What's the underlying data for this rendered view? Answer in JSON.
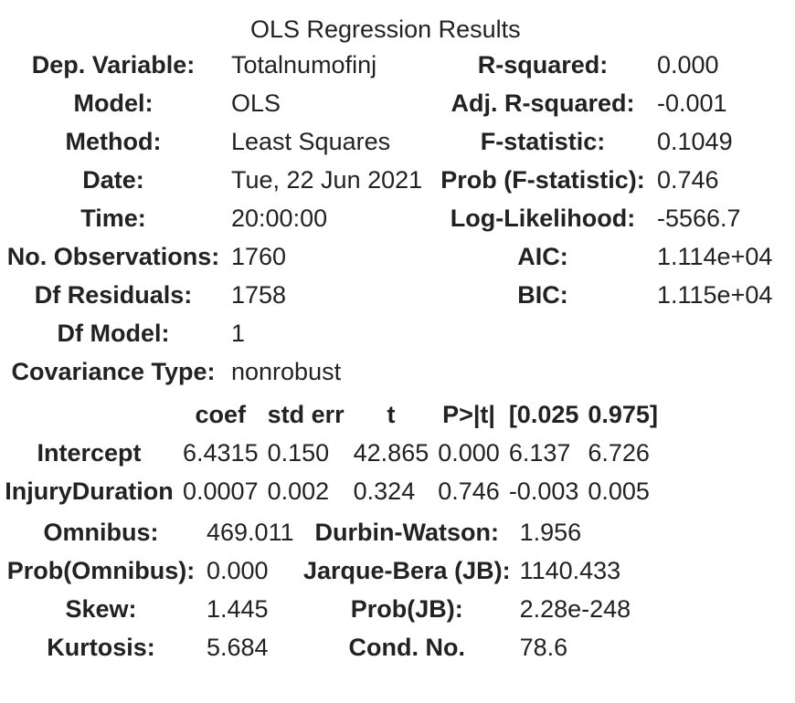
{
  "caption": "OLS Regression Results",
  "summary": {
    "rows": [
      {
        "l1": "Dep. Variable:",
        "v1": "Totalnumofinj",
        "l2": "R-squared:",
        "v2": "0.000"
      },
      {
        "l1": "Model:",
        "v1": "OLS",
        "l2": "Adj. R-squared:",
        "v2": "-0.001"
      },
      {
        "l1": "Method:",
        "v1": "Least Squares",
        "l2": "F-statistic:",
        "v2": "0.1049"
      },
      {
        "l1": "Date:",
        "v1": "Tue, 22 Jun 2021",
        "l2": "Prob (F-statistic):",
        "v2": "0.746"
      },
      {
        "l1": "Time:",
        "v1": "20:00:00",
        "l2": "Log-Likelihood:",
        "v2": "-5566.7"
      },
      {
        "l1": "No. Observations:",
        "v1": "1760",
        "l2": "AIC:",
        "v2": "1.114e+04"
      },
      {
        "l1": "Df Residuals:",
        "v1": "1758",
        "l2": "BIC:",
        "v2": "1.115e+04"
      },
      {
        "l1": "Df Model:",
        "v1": "1",
        "l2": "",
        "v2": ""
      },
      {
        "l1": "Covariance Type:",
        "v1": "nonrobust",
        "l2": "",
        "v2": ""
      }
    ]
  },
  "coefficients": {
    "headers": [
      "coef",
      "std err",
      "t",
      "P>|t|",
      "[0.025",
      "0.975]"
    ],
    "rows": [
      {
        "name": "Intercept",
        "values": [
          "6.4315",
          "0.150",
          "42.865",
          "0.000",
          "6.137",
          "6.726"
        ]
      },
      {
        "name": "InjuryDuration",
        "values": [
          "0.0007",
          "0.002",
          "0.324",
          "0.746",
          "-0.003",
          "0.005"
        ]
      }
    ]
  },
  "diagnostics": {
    "rows": [
      {
        "l1": "Omnibus:",
        "v1": "469.011",
        "l2": "Durbin-Watson:",
        "v2": "1.956"
      },
      {
        "l1": "Prob(Omnibus):",
        "v1": "0.000",
        "l2": "Jarque-Bera (JB):",
        "v2": "1140.433"
      },
      {
        "l1": "Skew:",
        "v1": "1.445",
        "l2": "Prob(JB):",
        "v2": "2.28e-248"
      },
      {
        "l1": "Kurtosis:",
        "v1": "5.684",
        "l2": "Cond. No.",
        "v2": "78.6"
      }
    ]
  }
}
